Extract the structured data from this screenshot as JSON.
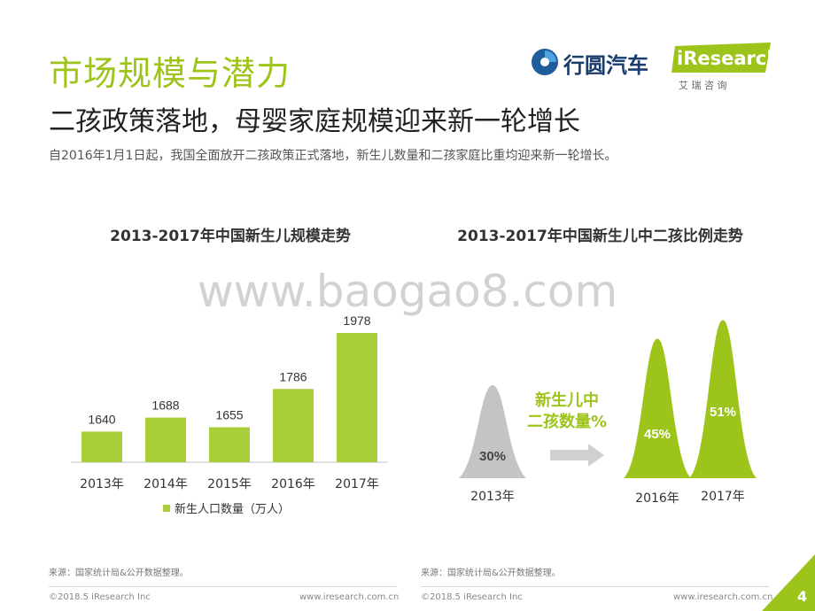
{
  "header": {
    "title": "市场规模与潜力",
    "subtitle": "二孩政策落地，母婴家庭规模迎来新一轮增长",
    "description": "自2016年1月1日起，我国全面放开二孩政策正式落地，新生儿数量和二孩家庭比重均迎来新一轮增长。"
  },
  "logos": {
    "brand1": "行圆汽车",
    "brand2": "iResearch",
    "brand2_sub": "艾 瑞 咨 询"
  },
  "watermark": "www.baogao8.com",
  "chart_data": [
    {
      "type": "bar",
      "title": "2013-2017年中国新生儿规模走势",
      "categories": [
        "2013年",
        "2014年",
        "2015年",
        "2016年",
        "2017年"
      ],
      "series": [
        {
          "name": "新生人口数量（万人）",
          "values": [
            1640,
            1688,
            1655,
            1786,
            1978
          ]
        }
      ],
      "legend_position": "bottom",
      "grid": false,
      "color": "#a8cf3a"
    },
    {
      "type": "area",
      "title": "2013-2017年中国新生儿中二孩比例走势",
      "annotation": "新生儿中\n二孩数量%",
      "categories": [
        "2013年",
        "2016年",
        "2017年"
      ],
      "values": [
        30,
        45,
        51
      ],
      "labels": [
        "30%",
        "45%",
        "51%"
      ],
      "colors": [
        "#c4c4c4",
        "#9dc41a",
        "#9dc41a"
      ]
    }
  ],
  "footer": {
    "source_left": "来源：国家统计局&公开数据整理。",
    "source_right": "来源：国家统计局&公开数据整理。",
    "copyright_left": "©2018.5 iResearch Inc",
    "url_left": "www.iresearch.com.cn",
    "copyright_right": "©2018.5 iResearch Inc",
    "url_right": "www.iresearch.com.cn",
    "page_number": "4"
  }
}
